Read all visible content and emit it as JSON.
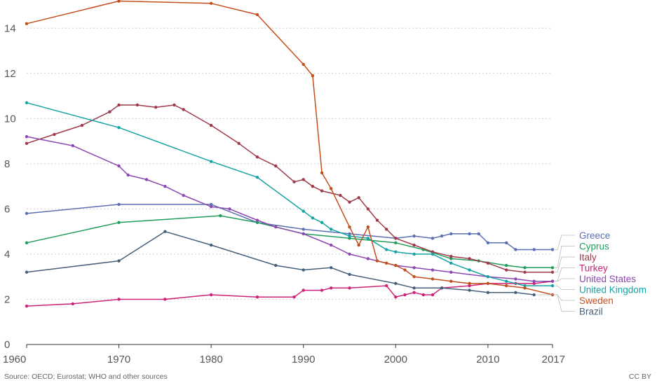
{
  "chart_data": {
    "type": "line",
    "title": "",
    "xlabel": "",
    "ylabel": "",
    "xlim": [
      1960,
      2017
    ],
    "ylim": [
      0,
      15
    ],
    "x_ticks": [
      1960,
      1970,
      1980,
      1990,
      2000,
      2010,
      2017
    ],
    "y_ticks": [
      0,
      2,
      4,
      6,
      8,
      10,
      12,
      14
    ],
    "grid": "horizontal dotted",
    "legend": "right, end-of-line labels",
    "series": [
      {
        "name": "Greece",
        "color": "#5b6fb3",
        "points": [
          [
            1960,
            5.8
          ],
          [
            1970,
            6.2
          ],
          [
            1980,
            6.2
          ],
          [
            1985,
            5.4
          ],
          [
            1990,
            5.1
          ],
          [
            1995,
            4.9
          ],
          [
            2000,
            4.7
          ],
          [
            2002,
            4.8
          ],
          [
            2004,
            4.7
          ],
          [
            2005,
            4.8
          ],
          [
            2006,
            4.9
          ],
          [
            2008,
            4.9
          ],
          [
            2009,
            4.9
          ],
          [
            2010,
            4.5
          ],
          [
            2012,
            4.5
          ],
          [
            2013,
            4.2
          ],
          [
            2015,
            4.2
          ],
          [
            2017,
            4.2
          ]
        ]
      },
      {
        "name": "Cyprus",
        "color": "#1f9e5a",
        "points": [
          [
            1960,
            4.5
          ],
          [
            1970,
            5.4
          ],
          [
            1981,
            5.7
          ],
          [
            1985,
            5.4
          ],
          [
            1990,
            4.9
          ],
          [
            1995,
            4.7
          ],
          [
            2000,
            4.5
          ],
          [
            2003,
            4.2
          ],
          [
            2006,
            3.8
          ],
          [
            2009,
            3.7
          ],
          [
            2012,
            3.5
          ],
          [
            2014,
            3.4
          ],
          [
            2017,
            3.4
          ]
        ]
      },
      {
        "name": "Italy",
        "color": "#a03a4a",
        "points": [
          [
            1960,
            8.9
          ],
          [
            1963,
            9.3
          ],
          [
            1966,
            9.7
          ],
          [
            1969,
            10.3
          ],
          [
            1970,
            10.6
          ],
          [
            1972,
            10.6
          ],
          [
            1974,
            10.5
          ],
          [
            1976,
            10.6
          ],
          [
            1977,
            10.4
          ],
          [
            1980,
            9.7
          ],
          [
            1983,
            8.9
          ],
          [
            1985,
            8.3
          ],
          [
            1987,
            7.9
          ],
          [
            1989,
            7.2
          ],
          [
            1990,
            7.3
          ],
          [
            1991,
            7.0
          ],
          [
            1992,
            6.8
          ],
          [
            1994,
            6.6
          ],
          [
            1995,
            6.3
          ],
          [
            1996,
            6.5
          ],
          [
            1997,
            6.0
          ],
          [
            1998,
            5.5
          ],
          [
            1999,
            5.1
          ],
          [
            2000,
            4.7
          ],
          [
            2002,
            4.4
          ],
          [
            2004,
            4.1
          ],
          [
            2006,
            3.9
          ],
          [
            2008,
            3.8
          ],
          [
            2010,
            3.6
          ],
          [
            2012,
            3.3
          ],
          [
            2014,
            3.2
          ],
          [
            2017,
            3.2
          ]
        ]
      },
      {
        "name": "Turkey",
        "color": "#cc2277",
        "points": [
          [
            1960,
            1.7
          ],
          [
            1965,
            1.8
          ],
          [
            1970,
            2.0
          ],
          [
            1975,
            2.0
          ],
          [
            1980,
            2.2
          ],
          [
            1985,
            2.1
          ],
          [
            1989,
            2.1
          ],
          [
            1990,
            2.4
          ],
          [
            1992,
            2.4
          ],
          [
            1993,
            2.5
          ],
          [
            1995,
            2.5
          ],
          [
            1999,
            2.6
          ],
          [
            2000,
            2.1
          ],
          [
            2001,
            2.2
          ],
          [
            2002,
            2.3
          ],
          [
            2003,
            2.2
          ],
          [
            2004,
            2.2
          ],
          [
            2005,
            2.5
          ],
          [
            2008,
            2.6
          ],
          [
            2010,
            2.7
          ],
          [
            2013,
            2.7
          ],
          [
            2015,
            2.7
          ],
          [
            2017,
            2.8
          ]
        ]
      },
      {
        "name": "United States",
        "color": "#8b48b0",
        "points": [
          [
            1960,
            9.2
          ],
          [
            1965,
            8.8
          ],
          [
            1970,
            7.9
          ],
          [
            1971,
            7.5
          ],
          [
            1973,
            7.3
          ],
          [
            1975,
            7.0
          ],
          [
            1977,
            6.6
          ],
          [
            1980,
            6.1
          ],
          [
            1982,
            6.0
          ],
          [
            1985,
            5.5
          ],
          [
            1987,
            5.2
          ],
          [
            1990,
            4.9
          ],
          [
            1993,
            4.4
          ],
          [
            1995,
            4.0
          ],
          [
            1997,
            3.8
          ],
          [
            2000,
            3.5
          ],
          [
            2002,
            3.4
          ],
          [
            2004,
            3.3
          ],
          [
            2006,
            3.2
          ],
          [
            2010,
            3.0
          ],
          [
            2013,
            2.9
          ],
          [
            2015,
            2.8
          ],
          [
            2017,
            2.8
          ]
        ]
      },
      {
        "name": "United Kingdom",
        "color": "#17a3a3",
        "points": [
          [
            1960,
            10.7
          ],
          [
            1970,
            9.6
          ],
          [
            1980,
            8.1
          ],
          [
            1985,
            7.4
          ],
          [
            1990,
            5.9
          ],
          [
            1991,
            5.6
          ],
          [
            1992,
            5.4
          ],
          [
            1993,
            5.1
          ],
          [
            1995,
            4.8
          ],
          [
            1997,
            4.7
          ],
          [
            1999,
            4.2
          ],
          [
            2000,
            4.1
          ],
          [
            2002,
            4.0
          ],
          [
            2004,
            4.0
          ],
          [
            2006,
            3.6
          ],
          [
            2008,
            3.3
          ],
          [
            2010,
            3.0
          ],
          [
            2012,
            2.8
          ],
          [
            2014,
            2.6
          ],
          [
            2017,
            2.6
          ]
        ]
      },
      {
        "name": "Sweden",
        "color": "#c24e1c",
        "points": [
          [
            1960,
            14.2
          ],
          [
            1970,
            15.2
          ],
          [
            1980,
            15.1
          ],
          [
            1985,
            14.6
          ],
          [
            1990,
            12.4
          ],
          [
            1991,
            11.9
          ],
          [
            1992,
            7.6
          ],
          [
            1993,
            6.9
          ],
          [
            1995,
            5.2
          ],
          [
            1996,
            4.4
          ],
          [
            1997,
            5.2
          ],
          [
            1998,
            3.7
          ],
          [
            1999,
            3.6
          ],
          [
            2000,
            3.5
          ],
          [
            2001,
            3.3
          ],
          [
            2002,
            3.0
          ],
          [
            2004,
            2.9
          ],
          [
            2006,
            2.8
          ],
          [
            2008,
            2.7
          ],
          [
            2010,
            2.7
          ],
          [
            2012,
            2.6
          ],
          [
            2014,
            2.5
          ],
          [
            2017,
            2.2
          ]
        ]
      },
      {
        "name": "Brazil",
        "color": "#47607a",
        "points": [
          [
            1960,
            3.2
          ],
          [
            1970,
            3.7
          ],
          [
            1975,
            5.0
          ],
          [
            1980,
            4.4
          ],
          [
            1987,
            3.5
          ],
          [
            1990,
            3.3
          ],
          [
            1993,
            3.4
          ],
          [
            1995,
            3.1
          ],
          [
            2000,
            2.7
          ],
          [
            2002,
            2.5
          ],
          [
            2005,
            2.5
          ],
          [
            2008,
            2.4
          ],
          [
            2010,
            2.3
          ],
          [
            2013,
            2.3
          ],
          [
            2015,
            2.2
          ]
        ]
      }
    ]
  },
  "footer": {
    "source": "Source: OECD; Eurostat; WHO and other sources",
    "license": "CC BY"
  }
}
